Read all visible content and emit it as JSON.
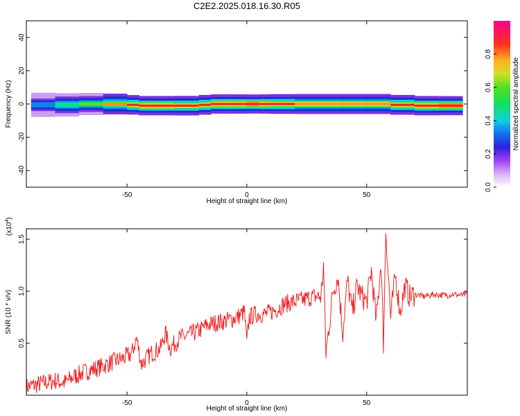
{
  "title": "C2E2.2025.018.16.30.R05",
  "colors": {
    "snr_line": "#ee2222",
    "ridge": "#ff2020",
    "frame": "#000000"
  },
  "colormap": [
    "#ffffff",
    "#c8a0f0",
    "#7a30e0",
    "#1030d0",
    "#1080f0",
    "#10d0e0",
    "#10e070",
    "#60e020",
    "#e0e020",
    "#ff9020",
    "#ff2020",
    "#ff00a0"
  ],
  "chart_data": [
    {
      "type": "heatmap",
      "xlabel": "Height of straight line (km)",
      "ylabel": "Frequency (Hz)",
      "xlim": [
        -92,
        92
      ],
      "ylim": [
        -50,
        50
      ],
      "x_ticks": [
        "-50",
        "0",
        "50"
      ],
      "y_ticks": [
        "-40",
        "-20",
        "0",
        "20",
        "40"
      ],
      "colorbar": {
        "label": "Normalized spectral amplitude",
        "range": [
          0.0,
          1.0
        ],
        "ticks": [
          "0.0",
          "0.2",
          "0.4",
          "0.6",
          "0.8"
        ]
      },
      "ridge": {
        "x": [
          -90,
          -80,
          -70,
          -60,
          -50,
          -45,
          -40,
          -30,
          -20,
          -15,
          -10,
          -5,
          0,
          5,
          10,
          20,
          30,
          40,
          50,
          60,
          70,
          80,
          90
        ],
        "freq_hz": [
          0,
          -1,
          0,
          0,
          0,
          -1,
          -1,
          -1,
          -1,
          0,
          0,
          0,
          0,
          0,
          0,
          0,
          0,
          0,
          0,
          0,
          -1,
          -1,
          -1
        ],
        "amplitude": [
          0.35,
          0.45,
          0.55,
          0.7,
          0.85,
          0.95,
          0.9,
          0.95,
          0.85,
          0.9,
          0.95,
          0.9,
          0.95,
          0.95,
          0.9,
          0.85,
          0.85,
          0.85,
          0.85,
          0.85,
          0.9,
          0.95,
          0.95
        ]
      }
    },
    {
      "type": "line",
      "xlabel": "Height of straight line (km)",
      "ylabel": "SNR (10 * v/v)",
      "y_scale_label": "(x10",
      "y_scale_exp": "4",
      "xlim": [
        -92,
        92
      ],
      "ylim": [
        0,
        1.6
      ],
      "x_ticks": [
        "-50",
        "0",
        "50"
      ],
      "y_ticks": [
        "0.5",
        "1.0",
        "1.5"
      ],
      "series": [
        {
          "x": [
            -92,
            -88,
            -84,
            -80,
            -76,
            -72,
            -68,
            -64,
            -60,
            -56,
            -52,
            -48,
            -46,
            -44,
            -40,
            -36,
            -34,
            -32,
            -28,
            -24,
            -20,
            -16,
            -12,
            -8,
            -4,
            -1,
            0,
            1,
            4,
            8,
            12,
            16,
            20,
            24,
            28,
            31,
            32,
            33,
            36,
            38,
            40,
            42,
            44,
            46,
            48,
            50,
            52,
            54,
            56,
            57,
            58,
            60,
            62,
            64,
            66,
            68,
            70,
            74,
            78,
            82,
            86,
            90,
            92
          ],
          "y": [
            0.08,
            0.1,
            0.12,
            0.14,
            0.12,
            0.18,
            0.22,
            0.25,
            0.28,
            0.32,
            0.35,
            0.4,
            0.55,
            0.3,
            0.4,
            0.45,
            0.6,
            0.45,
            0.55,
            0.58,
            0.62,
            0.68,
            0.7,
            0.72,
            0.75,
            0.8,
            0.5,
            0.75,
            0.78,
            0.78,
            0.82,
            0.88,
            0.9,
            0.92,
            0.95,
            0.95,
            1.25,
            0.4,
            1.0,
            1.15,
            0.6,
            1.1,
            0.8,
            1.05,
            0.95,
            0.9,
            1.2,
            0.7,
            1.3,
            0.5,
            1.6,
            0.75,
            1.15,
            0.8,
            1.05,
            0.95,
            0.97,
            0.95,
            0.97,
            0.96,
            0.97,
            0.96,
            0.97
          ]
        }
      ]
    }
  ]
}
